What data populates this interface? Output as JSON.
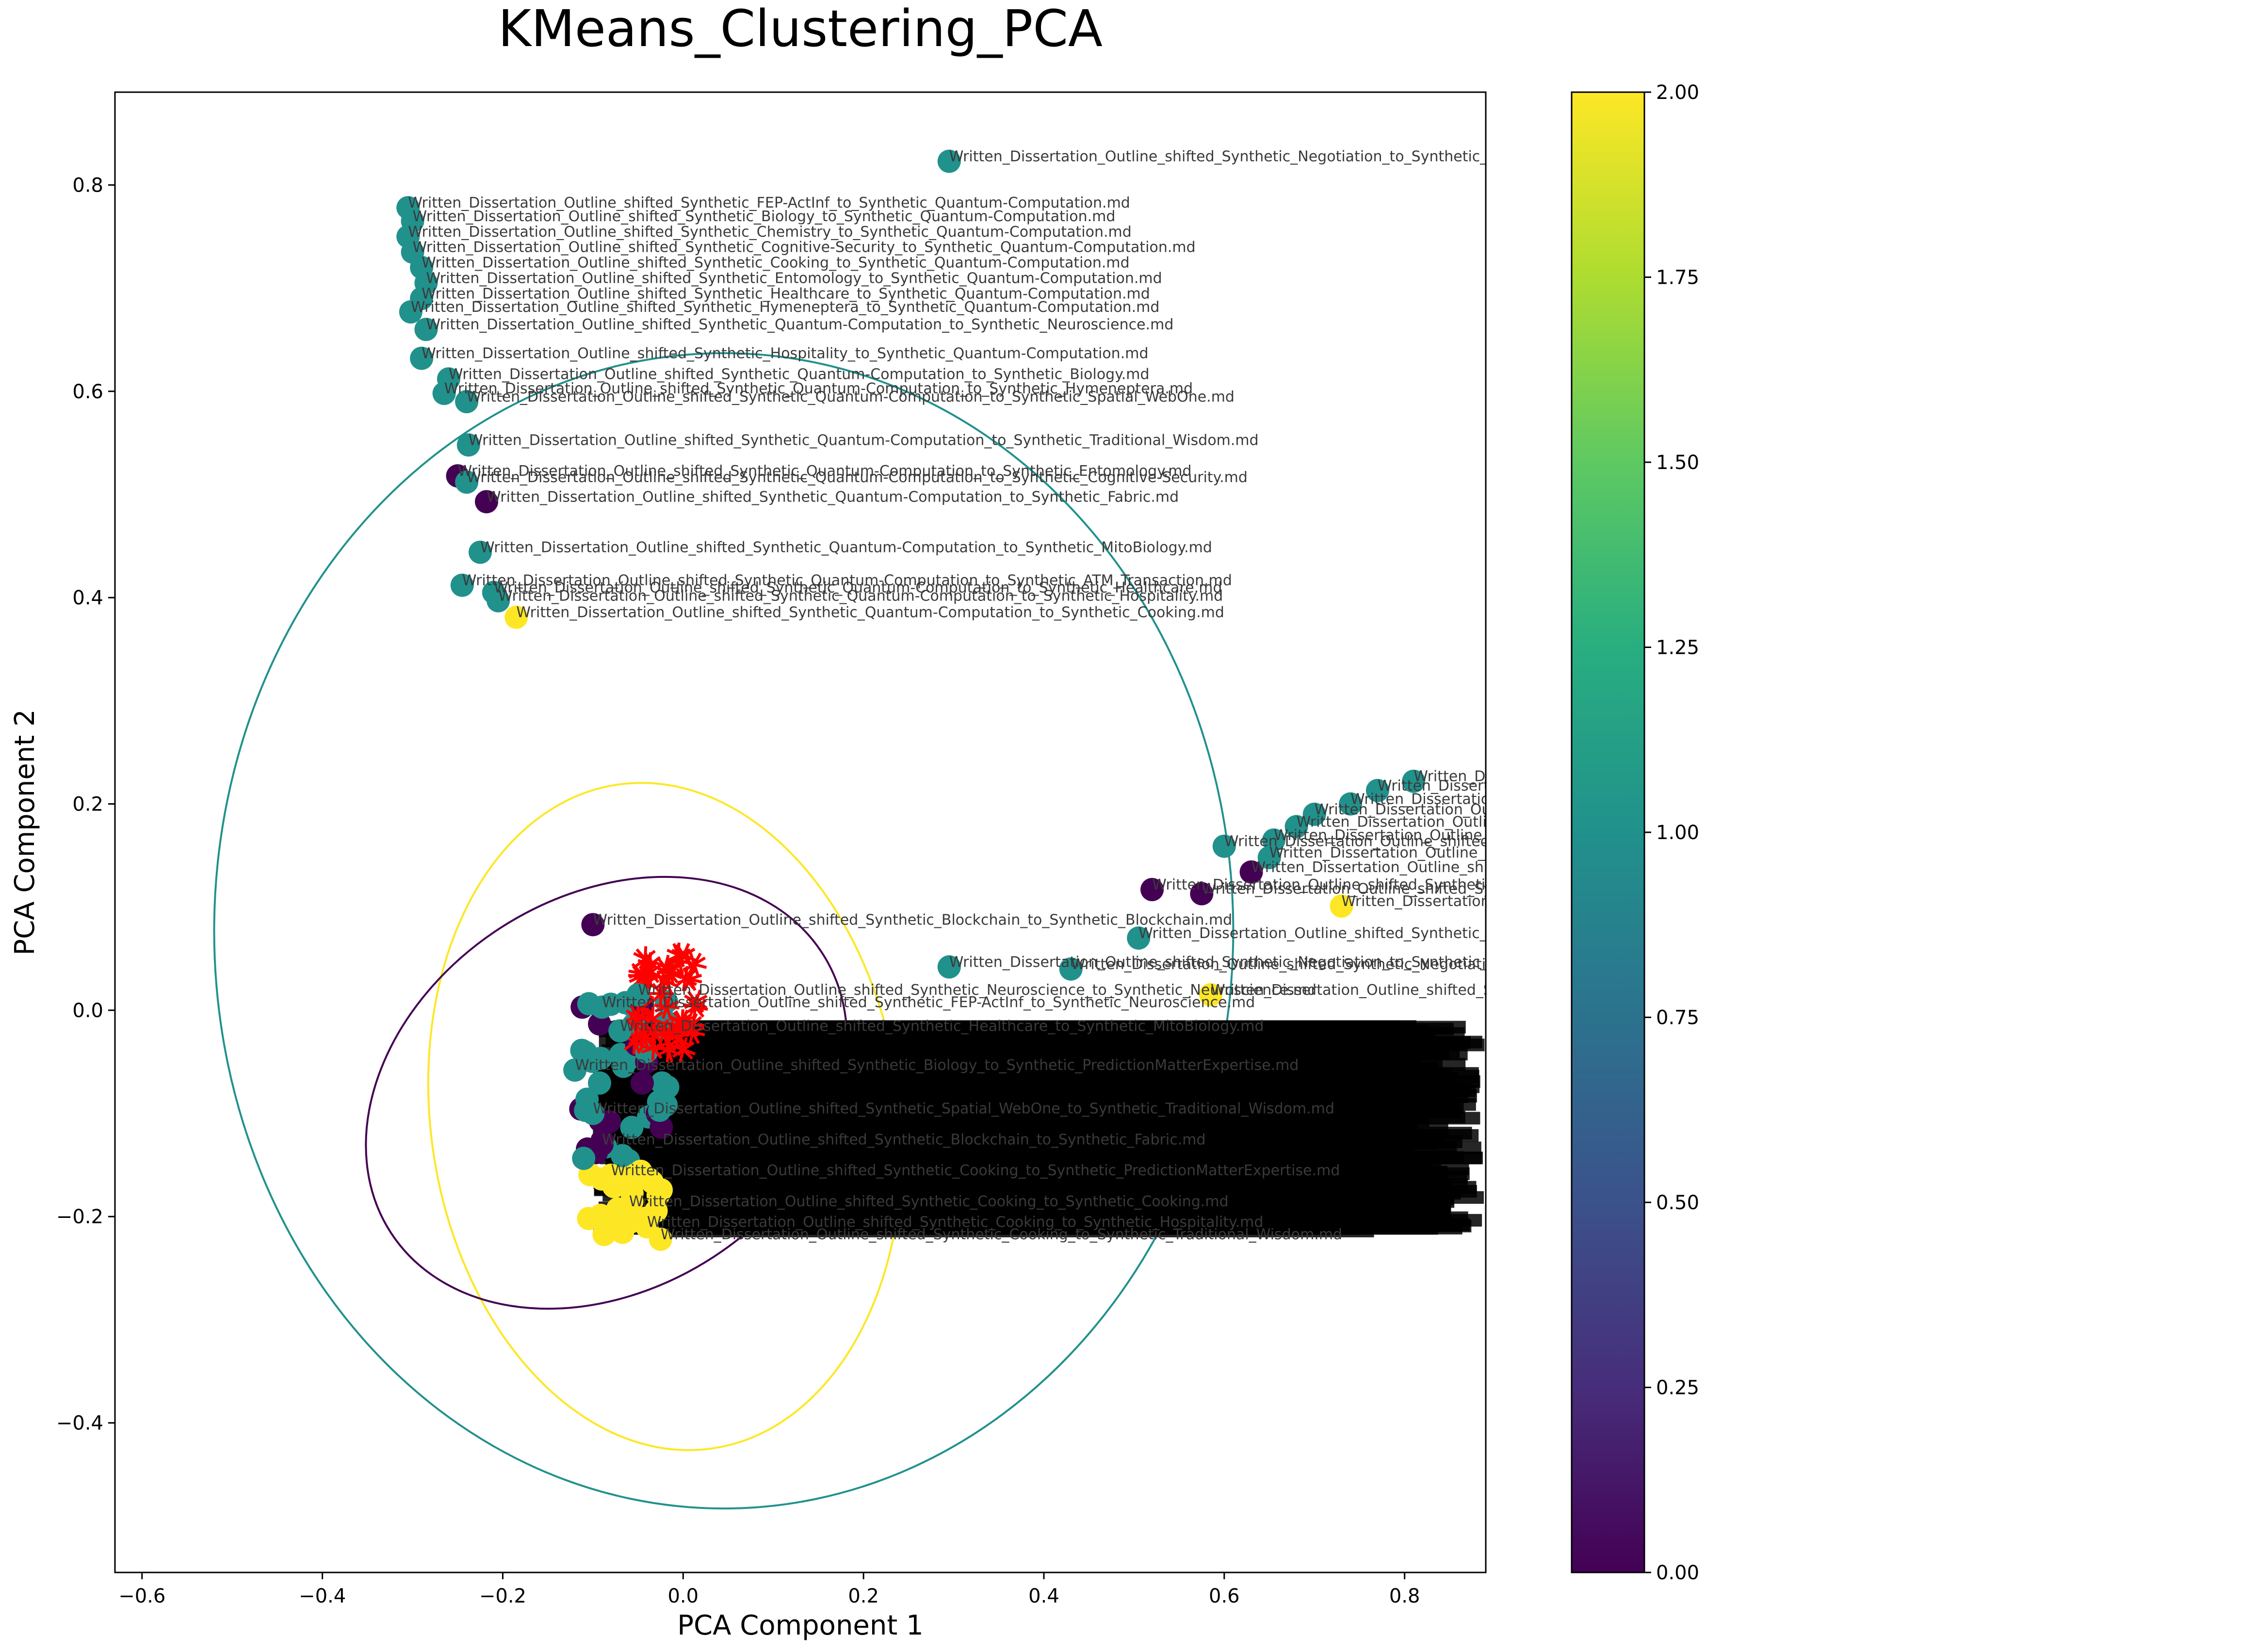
{
  "chart_data": {
    "type": "scatter",
    "title": "KMeans_Clustering_PCA",
    "xlabel": "PCA Component 1",
    "ylabel": "PCA Component 2",
    "xlim": [
      -0.63,
      0.89
    ],
    "ylim": [
      -0.545,
      0.89
    ],
    "xticks": [
      -0.6,
      -0.4,
      -0.2,
      0.0,
      0.2,
      0.4,
      0.6,
      0.8
    ],
    "xtick_labels": [
      "−0.6",
      "−0.4",
      "−0.2",
      "0.0",
      "0.2",
      "0.4",
      "0.6",
      "0.8"
    ],
    "yticks": [
      -0.4,
      -0.2,
      0.0,
      0.2,
      0.4,
      0.6,
      0.8
    ],
    "ytick_labels": [
      "−0.4",
      "−0.2",
      "0.0",
      "0.2",
      "0.4",
      "0.6",
      "0.8"
    ],
    "grid": false,
    "colormap": "viridis",
    "colorbar": {
      "range": [
        0,
        2
      ],
      "ticks": [
        0.0,
        0.25,
        0.5,
        0.75,
        1.0,
        1.25,
        1.5,
        1.75,
        2.0
      ],
      "tick_labels": [
        "0.00",
        "0.25",
        "0.50",
        "0.75",
        "1.00",
        "1.25",
        "1.50",
        "1.75",
        "2.00"
      ]
    },
    "cluster_colors": {
      "0": "#440154",
      "1": "#21918c",
      "2": "#fde725"
    },
    "centroid_color": "#ff0000",
    "ellipses": [
      {
        "cluster": 1,
        "cx": 0.045,
        "cy": 0.077,
        "rx": 0.565,
        "ry": 0.56,
        "angle_deg": 0
      },
      {
        "cluster": 2,
        "cx": -0.02,
        "cy": -0.103,
        "rx": 0.26,
        "ry": 0.325,
        "angle_deg": 8
      },
      {
        "cluster": 0,
        "cx": -0.085,
        "cy": -0.08,
        "rx": 0.285,
        "ry": 0.19,
        "angle_deg": 33
      }
    ],
    "points": [
      {
        "x": 0.295,
        "y": 0.823,
        "cluster": 1,
        "label": "Written_Dissertation_Outline_shifted_Synthetic_Negotiation_to_Synthetic_Quantum-Computation.md"
      },
      {
        "x": -0.305,
        "y": 0.778,
        "cluster": 1,
        "label": "Written_Dissertation_Outline_shifted_Synthetic_FEP-ActInf_to_Synthetic_Quantum-Computation.md"
      },
      {
        "x": -0.3,
        "y": 0.765,
        "cluster": 1,
        "label": "Written_Dissertation_Outline_shifted_Synthetic_Biology_to_Synthetic_Quantum-Computation.md"
      },
      {
        "x": -0.305,
        "y": 0.75,
        "cluster": 1,
        "label": "Written_Dissertation_Outline_shifted_Synthetic_Chemistry_to_Synthetic_Quantum-Computation.md"
      },
      {
        "x": -0.3,
        "y": 0.735,
        "cluster": 1,
        "label": "Written_Dissertation_Outline_shifted_Synthetic_Cognitive-Security_to_Synthetic_Quantum-Computation.md"
      },
      {
        "x": -0.29,
        "y": 0.72,
        "cluster": 1,
        "label": "Written_Dissertation_Outline_shifted_Synthetic_Cooking_to_Synthetic_Quantum-Computation.md"
      },
      {
        "x": -0.285,
        "y": 0.705,
        "cluster": 1,
        "label": "Written_Dissertation_Outline_shifted_Synthetic_Entomology_to_Synthetic_Quantum-Computation.md"
      },
      {
        "x": -0.29,
        "y": 0.69,
        "cluster": 1,
        "label": "Written_Dissertation_Outline_shifted_Synthetic_Healthcare_to_Synthetic_Quantum-Computation.md"
      },
      {
        "x": -0.302,
        "y": 0.677,
        "cluster": 1,
        "label": "Written_Dissertation_Outline_shifted_Synthetic_Hymeneptera_to_Synthetic_Quantum-Computation.md"
      },
      {
        "x": -0.285,
        "y": 0.66,
        "cluster": 1,
        "label": "Written_Dissertation_Outline_shifted_Synthetic_Quantum-Computation_to_Synthetic_Neuroscience.md"
      },
      {
        "x": -0.29,
        "y": 0.632,
        "cluster": 1,
        "label": "Written_Dissertation_Outline_shifted_Synthetic_Hospitality_to_Synthetic_Quantum-Computation.md"
      },
      {
        "x": -0.26,
        "y": 0.612,
        "cluster": 1,
        "label": "Written_Dissertation_Outline_shifted_Synthetic_Quantum-Computation_to_Synthetic_Biology.md"
      },
      {
        "x": -0.265,
        "y": 0.598,
        "cluster": 1,
        "label": "Written_Dissertation_Outline_shifted_Synthetic_Quantum-Computation_to_Synthetic_Hymeneptera.md"
      },
      {
        "x": -0.24,
        "y": 0.59,
        "cluster": 1,
        "label": "Written_Dissertation_Outline_shifted_Synthetic_Quantum-Computation_to_Synthetic_Spatial_WebOne.md"
      },
      {
        "x": -0.238,
        "y": 0.548,
        "cluster": 1,
        "label": "Written_Dissertation_Outline_shifted_Synthetic_Quantum-Computation_to_Synthetic_Traditional_Wisdom.md"
      },
      {
        "x": -0.25,
        "y": 0.518,
        "cluster": 0,
        "label": "Written_Dissertation_Outline_shifted_Synthetic_Quantum-Computation_to_Synthetic_Entomology.md"
      },
      {
        "x": -0.24,
        "y": 0.512,
        "cluster": 1,
        "label": "Written_Dissertation_Outline_shifted_Synthetic_Quantum-Computation_to_Synthetic_Cognitive-Security.md"
      },
      {
        "x": -0.218,
        "y": 0.493,
        "cluster": 0,
        "label": "Written_Dissertation_Outline_shifted_Synthetic_Quantum-Computation_to_Synthetic_Fabric.md"
      },
      {
        "x": -0.225,
        "y": 0.444,
        "cluster": 1,
        "label": "Written_Dissertation_Outline_shifted_Synthetic_Quantum-Computation_to_Synthetic_MitoBiology.md"
      },
      {
        "x": -0.245,
        "y": 0.412,
        "cluster": 1,
        "label": "Written_Dissertation_Outline_shifted_Synthetic_Quantum-Computation_to_Synthetic_ATM_Transaction.md"
      },
      {
        "x": -0.21,
        "y": 0.405,
        "cluster": 1,
        "label": "Written_Dissertation_Outline_shifted_Synthetic_Quantum-Computation_to_Synthetic_Healthcare.md"
      },
      {
        "x": -0.205,
        "y": 0.397,
        "cluster": 1,
        "label": "Written_Dissertation_Outline_shifted_Synthetic_Quantum-Computation_to_Synthetic_Hospitality.md"
      },
      {
        "x": -0.185,
        "y": 0.381,
        "cluster": 2,
        "label": "Written_Dissertation_Outline_shifted_Synthetic_Quantum-Computation_to_Synthetic_Cooking.md"
      },
      {
        "x": 0.81,
        "y": 0.222,
        "cluster": 1,
        "label": "Written_Dissertation_Outline_shifted_Synthetic_Neuroscience_to_Synthetic_Negotiation.md"
      },
      {
        "x": 0.77,
        "y": 0.213,
        "cluster": 1,
        "label": "Written_Dissertation_Outline_shifted_Synthetic_FEP-ActInf_to_Synthetic_Negotiation.md"
      },
      {
        "x": 0.74,
        "y": 0.2,
        "cluster": 1,
        "label": "Written_Dissertation_Outline_shifted_Synthetic_Biology_to_Synthetic_Negotiation.md"
      },
      {
        "x": 0.7,
        "y": 0.19,
        "cluster": 1,
        "label": "Written_Dissertation_Outline_shifted_Synthetic_Chemistry_to_Synthetic_Negotiation.md"
      },
      {
        "x": 0.68,
        "y": 0.178,
        "cluster": 1,
        "label": "Written_Dissertation_Outline_shifted_Synthetic_Healthcare_to_Synthetic_Negotiation.md"
      },
      {
        "x": 0.655,
        "y": 0.165,
        "cluster": 1,
        "label": "Written_Dissertation_Outline_shifted_Synthetic_Hospitality_to_Synthetic_Negotiation.md"
      },
      {
        "x": 0.6,
        "y": 0.159,
        "cluster": 1,
        "label": "Written_Dissertation_Outline_shifted_Synthetic_Hymeneptera_to_Synthetic_Negotiation.md"
      },
      {
        "x": 0.65,
        "y": 0.148,
        "cluster": 1,
        "label": "Written_Dissertation_Outline_shifted_Synthetic_Negotiation_to_Synthetic_Entomology.md"
      },
      {
        "x": 0.63,
        "y": 0.134,
        "cluster": 0,
        "label": "Written_Dissertation_Outline_shifted_Synthetic_Cognitive_Security_to_Synthetic_Negotiation.md"
      },
      {
        "x": 0.52,
        "y": 0.117,
        "cluster": 0,
        "label": "Written_Dissertation_Outline_shifted_Synthetic_Negotiation_to_Synthetic_Blockchain.md"
      },
      {
        "x": 0.575,
        "y": 0.113,
        "cluster": 0,
        "label": "Written_Dissertation_Outline_shifted_Synthetic_Negotiation_to_Synthetic_Cognitive_Security.md"
      },
      {
        "x": 0.73,
        "y": 0.101,
        "cluster": 2,
        "label": "Written_Dissertation_Outline_shifted_Synthetic_Cooking_to_Synthetic_Negotiation.md"
      },
      {
        "x": 0.505,
        "y": 0.07,
        "cluster": 1,
        "label": "Written_Dissertation_Outline_shifted_Synthetic_Negotiation_to_Synthetic_MitoBiology.md"
      },
      {
        "x": 0.295,
        "y": 0.042,
        "cluster": 1,
        "label": "Written_Dissertation_Outline_shifted_Synthetic_Negotiation_to_Synthetic_ATM_Transaction.md"
      },
      {
        "x": 0.43,
        "y": 0.04,
        "cluster": 1,
        "label": "Written_Dissertation_Outline_shifted_Synthetic_Negotiation_to_Synthetic_Hospitality.md"
      },
      {
        "x": 0.585,
        "y": 0.015,
        "cluster": 2,
        "label": "Written_Dissertation_Outline_shifted_Synthetic_Negotiation_to_Synthetic_Cooking.md"
      },
      {
        "x": -0.1,
        "y": 0.083,
        "cluster": 0,
        "label": "Written_Dissertation_Outline_shifted_Synthetic_Blockchain_to_Synthetic_Blockchain.md"
      },
      {
        "x": -0.05,
        "y": 0.015,
        "cluster": 1,
        "label": "Written_Dissertation_Outline_shifted_Synthetic_Neuroscience_to_Synthetic_Neuroscience.md"
      },
      {
        "x": -0.09,
        "y": 0.003,
        "cluster": 1,
        "label": "Written_Dissertation_Outline_shifted_Synthetic_FEP-ActInf_to_Synthetic_Neuroscience.md"
      },
      {
        "x": -0.07,
        "y": -0.02,
        "cluster": 1,
        "label": "Written_Dissertation_Outline_shifted_Synthetic_Healthcare_to_Synthetic_MitoBiology.md"
      },
      {
        "x": -0.12,
        "y": -0.058,
        "cluster": 1,
        "label": "Written_Dissertation_Outline_shifted_Synthetic_Biology_to_Synthetic_PredictionMatterExpertise.md"
      },
      {
        "x": -0.1,
        "y": -0.1,
        "cluster": 1,
        "label": "Written_Dissertation_Outline_shifted_Synthetic_Spatial_WebOne_to_Synthetic_Traditional_Wisdom.md"
      },
      {
        "x": -0.09,
        "y": -0.13,
        "cluster": 0,
        "label": "Written_Dissertation_Outline_shifted_Synthetic_Blockchain_to_Synthetic_Fabric.md"
      },
      {
        "x": -0.08,
        "y": -0.16,
        "cluster": 2,
        "label": "Written_Dissertation_Outline_shifted_Synthetic_Cooking_to_Synthetic_PredictionMatterExpertise.md"
      },
      {
        "x": -0.06,
        "y": -0.19,
        "cluster": 2,
        "label": "Written_Dissertation_Outline_shifted_Synthetic_Cooking_to_Synthetic_Cooking.md"
      },
      {
        "x": -0.04,
        "y": -0.21,
        "cluster": 2,
        "label": "Written_Dissertation_Outline_shifted_Synthetic_Cooking_to_Synthetic_Hospitality.md"
      },
      {
        "x": -0.025,
        "y": -0.222,
        "cluster": 2,
        "label": "Written_Dissertation_Outline_shifted_Synthetic_Cooking_to_Synthetic_Traditional_Wisdom.md"
      }
    ]
  }
}
